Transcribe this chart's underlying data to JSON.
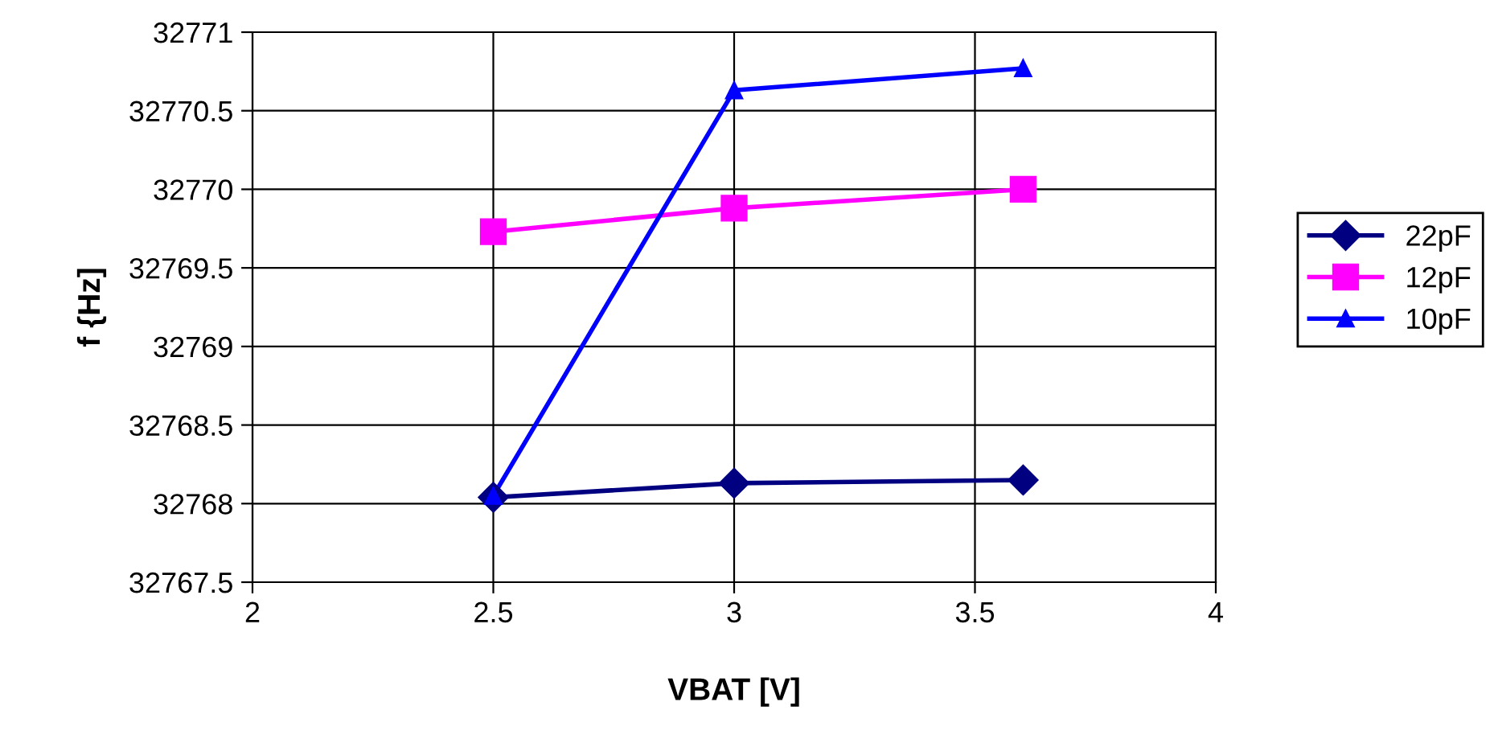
{
  "chart_data": {
    "type": "line",
    "xlabel": "VBAT [V]",
    "ylabel": "f {Hz]",
    "x": [
      2.5,
      3,
      3.6
    ],
    "series": [
      {
        "name": "22pF",
        "color": "#000080",
        "marker": "diamond",
        "values": [
          32768.04,
          32768.13,
          32768.15
        ]
      },
      {
        "name": "12pF",
        "color": "#ff00ff",
        "marker": "square",
        "values": [
          32769.73,
          32769.88,
          32770.0
        ]
      },
      {
        "name": "10pF",
        "color": "#0000ff",
        "marker": "triangle",
        "values": [
          32768.05,
          32770.63,
          32770.77
        ]
      }
    ],
    "xlim": [
      2,
      4
    ],
    "xticks": [
      2,
      2.5,
      3,
      3.5,
      4
    ],
    "ylim": [
      32767.5,
      32771
    ],
    "yticks": [
      32767.5,
      32768,
      32768.5,
      32769,
      32769.5,
      32770,
      32770.5,
      32771
    ],
    "grid": true,
    "legend": "right",
    "line_style": "solid"
  }
}
